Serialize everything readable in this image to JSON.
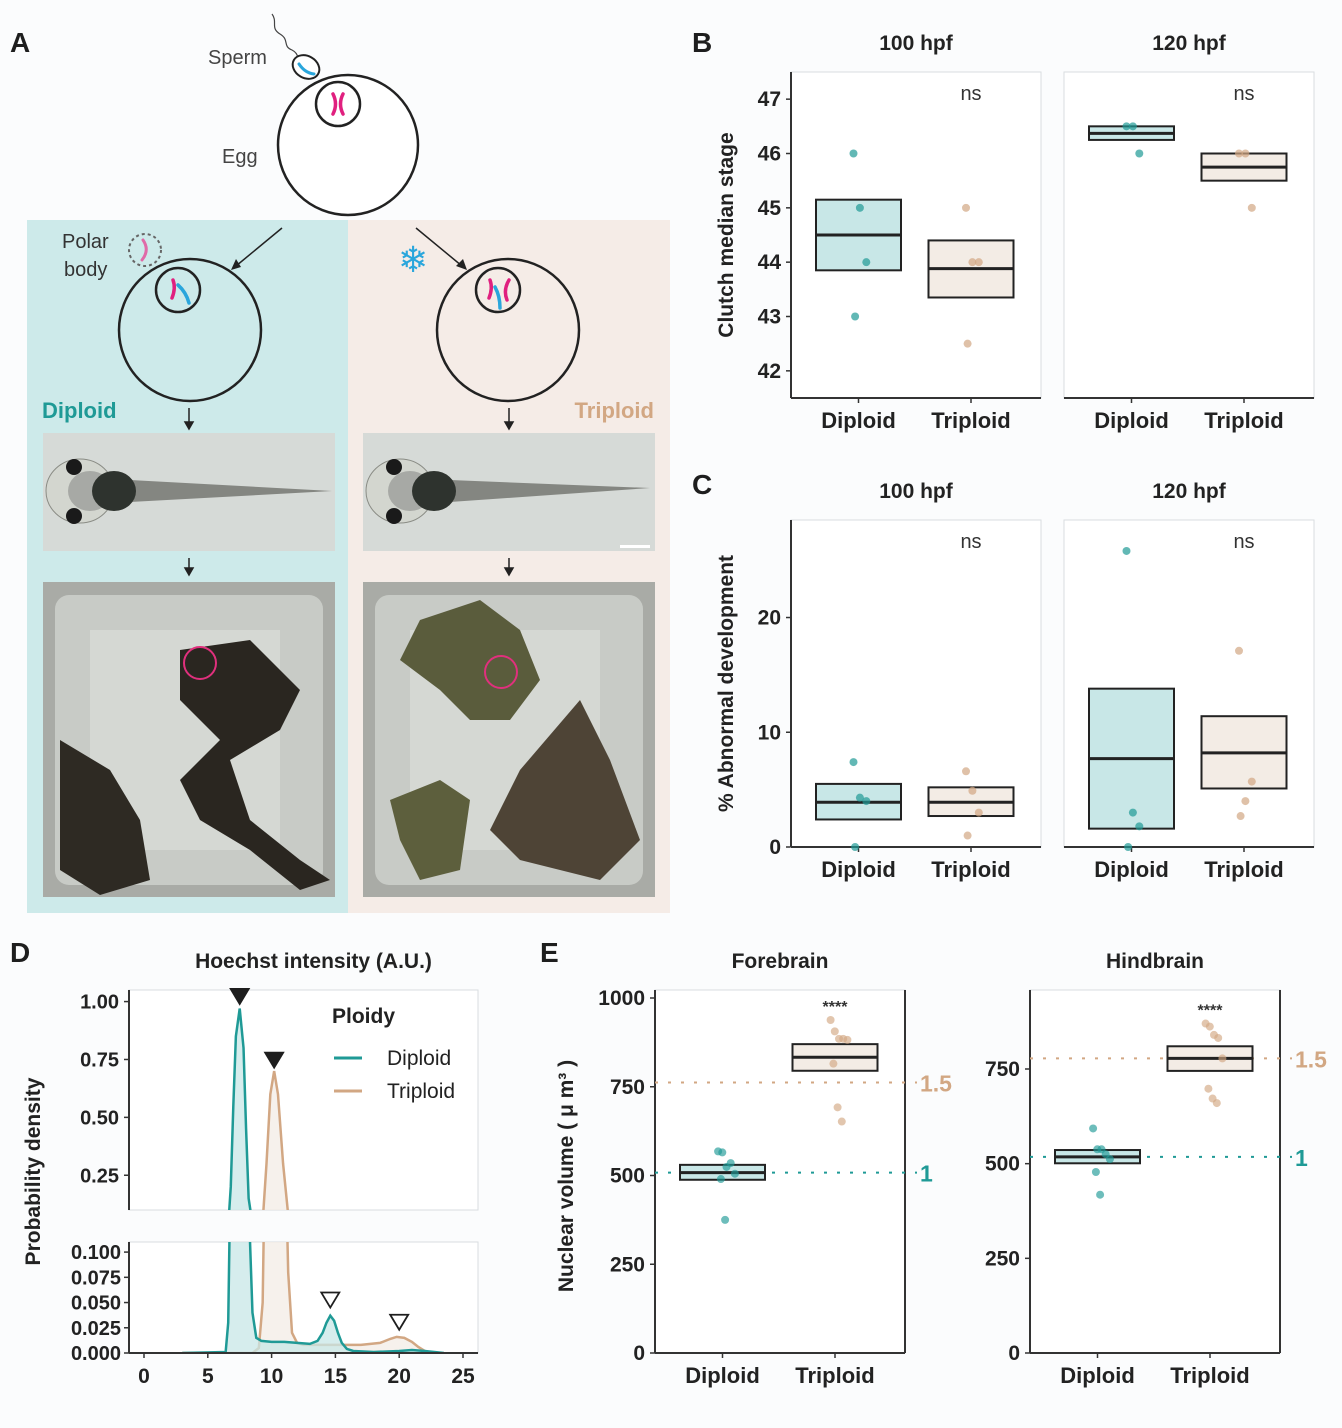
{
  "colors": {
    "diploid": "#1f9a96",
    "diploid_fill": "#c8e7e7",
    "triploid": "#d2a783",
    "triploid_fill": "#f3ece5",
    "diploid_bg": "#cdeaea",
    "triploid_bg": "#f5ece7",
    "sperm_chrom": "#2aa6dc",
    "egg_chrom": "#e0207f"
  },
  "panelA": {
    "letter": "A",
    "sperm_label": "Sperm",
    "egg_label": "Egg",
    "polar_label_1": "Polar",
    "polar_label_2": "body",
    "diploid_label": "Diploid",
    "triploid_label": "Triploid",
    "snowflake": "❄"
  },
  "chart_data": [
    {
      "id": "B",
      "type": "box",
      "letter": "B",
      "ylabel": "Clutch median stage",
      "ylim": [
        41.5,
        47.5
      ],
      "yticks": [
        42,
        43,
        44,
        45,
        46,
        47
      ],
      "categories": [
        "Diploid",
        "Triploid"
      ],
      "facets": [
        {
          "title": "100 hpf",
          "annotation": "ns",
          "boxes": [
            {
              "group": "Diploid",
              "q1": 43.85,
              "median": 44.5,
              "q3": 45.15,
              "points": [
                46,
                45,
                44,
                43
              ]
            },
            {
              "group": "Triploid",
              "q1": 43.35,
              "median": 43.88,
              "q3": 44.4,
              "points": [
                45,
                44,
                44,
                42.5
              ]
            }
          ]
        },
        {
          "title": "120 hpf",
          "annotation": "ns",
          "boxes": [
            {
              "group": "Diploid",
              "q1": 46.25,
              "median": 46.37,
              "q3": 46.5,
              "points": [
                46.5,
                46.5,
                46
              ]
            },
            {
              "group": "Triploid",
              "q1": 45.5,
              "median": 45.75,
              "q3": 46,
              "points": [
                46,
                46,
                45
              ]
            }
          ]
        }
      ]
    },
    {
      "id": "C",
      "type": "box",
      "letter": "C",
      "ylabel": "% Abnormal development",
      "ylim": [
        0,
        28.5
      ],
      "yticks": [
        0,
        10,
        20
      ],
      "categories": [
        "Diploid",
        "Triploid"
      ],
      "facets": [
        {
          "title": "100 hpf",
          "annotation": "ns",
          "boxes": [
            {
              "group": "Diploid",
              "q1": 2.4,
              "median": 3.9,
              "q3": 5.5,
              "points": [
                7.4,
                4.3,
                4.0,
                0
              ]
            },
            {
              "group": "Triploid",
              "q1": 2.7,
              "median": 3.9,
              "q3": 5.2,
              "points": [
                6.6,
                4.9,
                3.0,
                1.0
              ]
            }
          ]
        },
        {
          "title": "120 hpf",
          "annotation": "ns",
          "boxes": [
            {
              "group": "Diploid",
              "q1": 1.6,
              "median": 7.7,
              "q3": 13.8,
              "points": [
                25.8,
                3.0,
                1.8,
                0
              ]
            },
            {
              "group": "Triploid",
              "q1": 5.1,
              "median": 8.2,
              "q3": 11.4,
              "points": [
                17.1,
                4.0,
                5.7,
                2.7
              ]
            }
          ]
        }
      ]
    },
    {
      "id": "D",
      "type": "area",
      "letter": "D",
      "title": "Hoechst intensity (A.U.)",
      "ylabel": "Probability density",
      "xlim": [
        0,
        25
      ],
      "xticks": [
        0,
        5,
        10,
        15,
        20,
        25
      ],
      "upper_ylim": [
        0.1,
        1.05
      ],
      "upper_yticks": [
        "1.00",
        "0.75",
        "0.50",
        "0.25"
      ],
      "lower_ylim": [
        0,
        0.11
      ],
      "lower_yticks": [
        "0.100",
        "0.075",
        "0.050",
        "0.025",
        "0.000"
      ],
      "legend": {
        "title": "Ploidy",
        "entries": [
          "Diploid",
          "Triploid"
        ],
        "placement": "top-right"
      },
      "series": [
        {
          "name": "Diploid",
          "x": [
            3,
            6.4,
            6.6,
            6.8,
            7.0,
            7.2,
            7.5,
            7.8,
            8.0,
            8.2,
            8.5,
            8.8,
            9.2,
            10,
            11,
            12,
            13,
            13.6,
            14.0,
            14.3,
            14.6,
            14.9,
            15.2,
            15.5,
            15.9,
            16.4,
            18,
            20,
            21,
            22,
            23.5
          ],
          "y": [
            0,
            0.001,
            0.03,
            0.2,
            0.55,
            0.85,
            0.97,
            0.8,
            0.45,
            0.15,
            0.04,
            0.015,
            0.012,
            0.011,
            0.011,
            0.01,
            0.009,
            0.012,
            0.02,
            0.03,
            0.037,
            0.032,
            0.02,
            0.01,
            0.004,
            0.002,
            0.001,
            0.002,
            0.003,
            0.002,
            0
          ]
        },
        {
          "name": "Triploid",
          "x": [
            3,
            8.5,
            9.0,
            9.3,
            9.6,
            9.9,
            10.2,
            10.5,
            10.9,
            11.3,
            11.6,
            12.0,
            12.5,
            13,
            15,
            17,
            18.5,
            19.3,
            19.8,
            20.4,
            21.0,
            21.5,
            22.0,
            22.5
          ],
          "y": [
            0,
            0,
            0.005,
            0.05,
            0.3,
            0.6,
            0.7,
            0.6,
            0.3,
            0.08,
            0.02,
            0.01,
            0.008,
            0.008,
            0.008,
            0.008,
            0.01,
            0.014,
            0.016,
            0.015,
            0.011,
            0.006,
            0.002,
            0
          ]
        }
      ],
      "markers": [
        {
          "x": 7.5,
          "y": 1.02,
          "style": "filled"
        },
        {
          "x": 10.2,
          "y": 0.745,
          "style": "filled"
        },
        {
          "x": 14.6,
          "y": 0.052,
          "style": "open"
        },
        {
          "x": 20,
          "y": 0.03,
          "style": "open"
        }
      ]
    },
    {
      "id": "E",
      "type": "box",
      "letter": "E",
      "ylabel": "Nuclear volume ( μ m³ )",
      "categories": [
        "Diploid",
        "Triploid"
      ],
      "facets": [
        {
          "title": "Forebrain",
          "ylim": [
            0,
            1010
          ],
          "yticks": [
            0,
            250,
            500,
            750,
            1000
          ],
          "annotation": "****",
          "ref_lines": [
            {
              "value": 762,
              "label": "1.5",
              "group": "Triploid"
            },
            {
              "value": 508,
              "label": "1",
              "group": "Diploid"
            }
          ],
          "boxes": [
            {
              "group": "Diploid",
              "q1": 488,
              "median": 508,
              "q3": 530,
              "points": [
                568,
                565,
                524,
                535,
                505,
                490,
                375
              ]
            },
            {
              "group": "Triploid",
              "q1": 795,
              "median": 833,
              "q3": 870,
              "points": [
                938,
                906,
                885,
                885,
                882,
                815,
                692,
                652
              ]
            }
          ]
        },
        {
          "title": "Hindbrain",
          "ylim": [
            0,
            950
          ],
          "yticks": [
            0,
            250,
            500,
            750
          ],
          "annotation": "****",
          "ref_lines": [
            {
              "value": 778,
              "label": "1.5",
              "group": "Triploid"
            },
            {
              "value": 518,
              "label": "1",
              "group": "Diploid"
            }
          ],
          "boxes": [
            {
              "group": "Diploid",
              "q1": 501,
              "median": 518,
              "q3": 536,
              "points": [
                593,
                538,
                538,
                525,
                512,
                478,
                418
              ]
            },
            {
              "group": "Triploid",
              "q1": 745,
              "median": 778,
              "q3": 810,
              "points": [
                870,
                862,
                840,
                832,
                778,
                698,
                672,
                660
              ]
            }
          ]
        }
      ]
    }
  ]
}
